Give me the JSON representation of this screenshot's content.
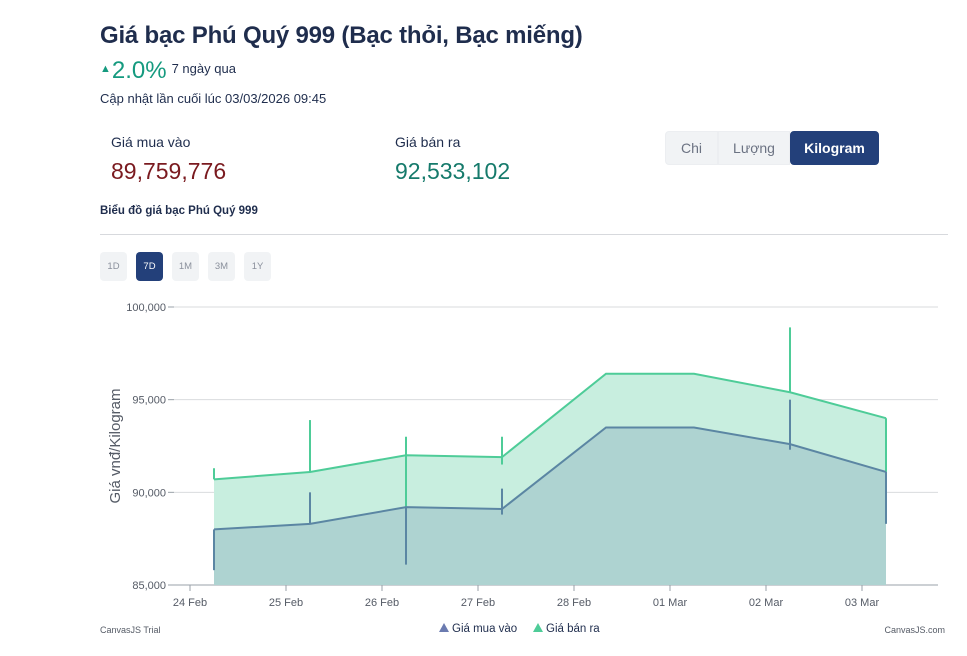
{
  "header": {
    "title": "Giá bạc Phú Quý 999 (Bạc thỏi, Bạc miếng)",
    "change_arrow": "▲",
    "change_value": "2.0%",
    "change_period": "7 ngày qua",
    "updated": "Cập nhật lần cuối lúc 03/03/2026 09:45"
  },
  "prices": {
    "buy_label": "Giá mua vào",
    "buy_value": "89,759,776",
    "sell_label": "Giá bán ra",
    "sell_value": "92,533,102"
  },
  "units": {
    "options": [
      "Chi",
      "Lượng",
      "Kilogram"
    ],
    "selected": "Kilogram"
  },
  "chart_heading": "Biểu đồ giá bạc Phú Quý 999",
  "ranges": {
    "options": [
      "1D",
      "7D",
      "1M",
      "3M",
      "1Y"
    ],
    "selected": "7D"
  },
  "colors": {
    "accent": "#23407a",
    "up": "#159a7f",
    "buy_price": "#7a1a1f",
    "sell_price": "#157a6b",
    "buy_line": "#5b86a3",
    "buy_fill": "#aed3d1",
    "sell_line": "#4ecc98",
    "sell_fill": "#c8eedf"
  },
  "credits": {
    "left": "CanvasJS Trial",
    "right": "CanvasJS.com"
  },
  "chart_data": {
    "type": "area",
    "title": "",
    "xlabel": "",
    "ylabel": "Giá vnđ/Kilogram",
    "ylim": [
      85000,
      100000
    ],
    "xlim": [
      "2026-02-23T20:00",
      "2026-03-03T19:00"
    ],
    "yticks": [
      85000,
      90000,
      95000,
      100000
    ],
    "ytick_labels": [
      "85,000",
      "90,000",
      "95,000",
      "100,000"
    ],
    "xticks": [
      "2026-02-24T00:00",
      "2026-02-25T00:00",
      "2026-02-26T00:00",
      "2026-02-27T00:00",
      "2026-02-28T00:00",
      "2026-03-01T00:00",
      "2026-03-02T00:00",
      "2026-03-03T00:00"
    ],
    "xtick_labels": [
      "24 Feb",
      "25 Feb",
      "26 Feb",
      "27 Feb",
      "28 Feb",
      "01 Mar",
      "02 Mar",
      "03 Mar"
    ],
    "grid": "horizontal",
    "legend": "bottom-center",
    "series": [
      {
        "name": "Giá mua vào",
        "color": "#5b86a3",
        "points": [
          {
            "x": "2026-02-24T06:00",
            "y": 88000,
            "low": 85800,
            "high": 88000
          },
          {
            "x": "2026-02-25T06:00",
            "y": 88300,
            "low": 88300,
            "high": 90000
          },
          {
            "x": "2026-02-26T06:00",
            "y": 89200,
            "low": 86100,
            "high": 89200
          },
          {
            "x": "2026-02-27T06:00",
            "y": 89100,
            "low": 88800,
            "high": 90200
          },
          {
            "x": "2026-02-28T08:00",
            "y": 93500,
            "low": 93500,
            "high": 93500
          },
          {
            "x": "2026-03-01T06:00",
            "y": 93500,
            "low": 93500,
            "high": 93500
          },
          {
            "x": "2026-03-02T06:00",
            "y": 92600,
            "low": 92300,
            "high": 95000
          },
          {
            "x": "2026-03-03T06:00",
            "y": 91100,
            "low": 88300,
            "high": 91100
          }
        ]
      },
      {
        "name": "Giá bán ra",
        "color": "#4ecc98",
        "points": [
          {
            "x": "2026-02-24T06:00",
            "y": 90700,
            "low": 90700,
            "high": 91300
          },
          {
            "x": "2026-02-25T06:00",
            "y": 91100,
            "low": 91100,
            "high": 93900
          },
          {
            "x": "2026-02-26T06:00",
            "y": 92000,
            "low": 88800,
            "high": 93000
          },
          {
            "x": "2026-02-27T06:00",
            "y": 91900,
            "low": 91500,
            "high": 93000
          },
          {
            "x": "2026-02-28T08:00",
            "y": 96400,
            "low": 96400,
            "high": 96400
          },
          {
            "x": "2026-03-01T06:00",
            "y": 96400,
            "low": 96400,
            "high": 96400
          },
          {
            "x": "2026-03-02T06:00",
            "y": 95400,
            "low": 95400,
            "high": 98900
          },
          {
            "x": "2026-03-03T06:00",
            "y": 94000,
            "low": 91100,
            "high": 94000
          }
        ]
      }
    ]
  }
}
